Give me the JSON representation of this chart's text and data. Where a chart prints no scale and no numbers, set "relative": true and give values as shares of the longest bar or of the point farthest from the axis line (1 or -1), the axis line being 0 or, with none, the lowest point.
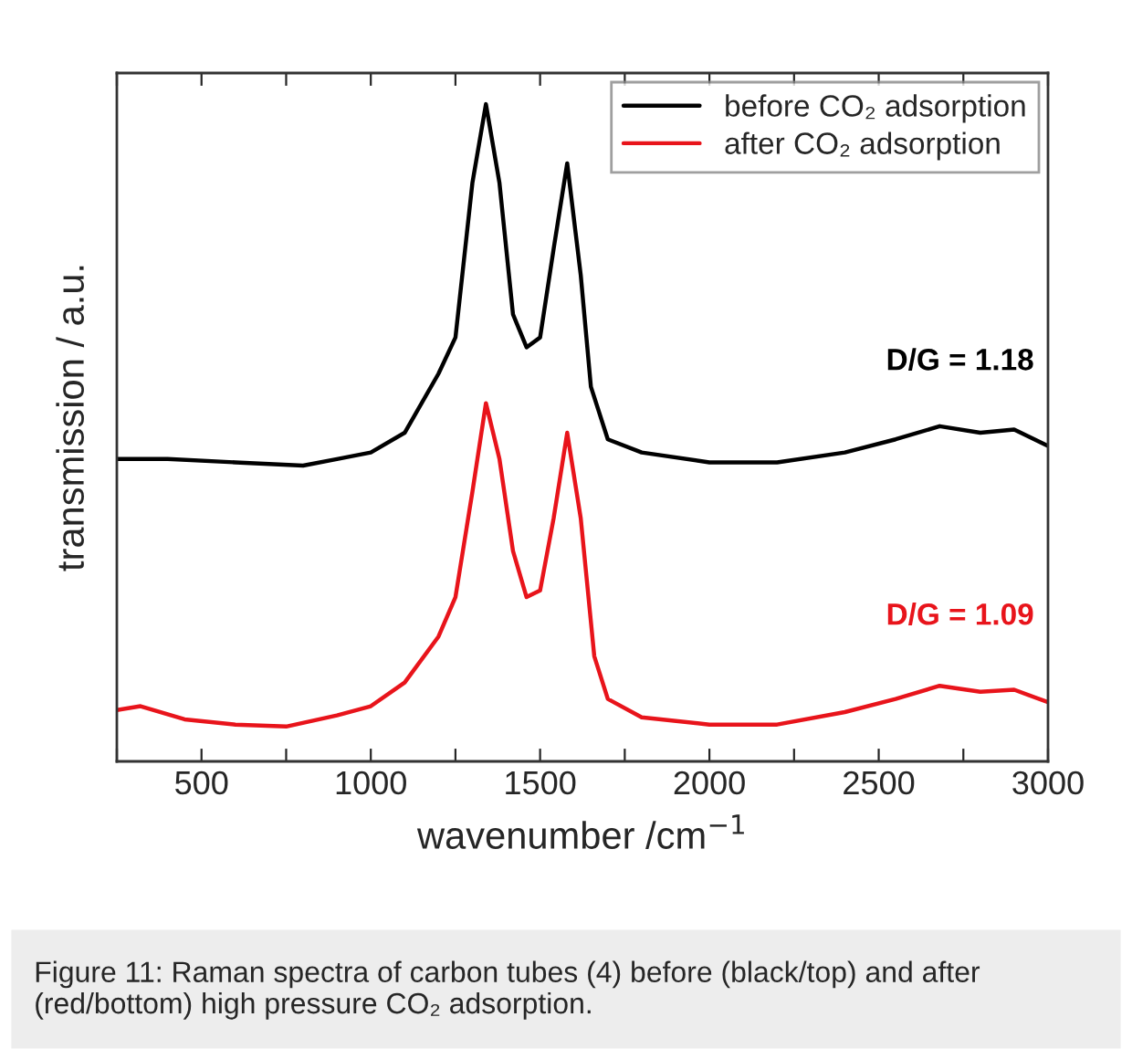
{
  "chart_data": {
    "type": "line",
    "relative": true,
    "xlabel": "wavenumber /cm$^{−1}$",
    "ylabel": "transmission / a.u.",
    "xlim": [
      250,
      3000
    ],
    "xticks": [
      {
        "value": 250,
        "label": null
      },
      500,
      {
        "value": 750,
        "label": null
      },
      1000,
      {
        "value": 1250,
        "label": null
      },
      1500,
      {
        "value": 1750,
        "label": null
      },
      2000,
      {
        "value": 2250,
        "label": null
      },
      2500,
      {
        "value": 2750,
        "label": null
      },
      3000
    ],
    "x": [
      250,
      400,
      600,
      800,
      900,
      1000,
      1100,
      1200,
      1250,
      1300,
      1340,
      1380,
      1420,
      1460,
      1500,
      1540,
      1580,
      1620,
      1650,
      1700,
      1800,
      2000,
      2200,
      2400,
      2550,
      2680,
      2800,
      2900,
      3000
    ],
    "series": [
      {
        "name": "before CO₂ adsorption",
        "color": "#000000",
        "values": [
          0.46,
          0.46,
          0.455,
          0.45,
          0.46,
          0.47,
          0.5,
          0.59,
          0.645,
          0.88,
          1.0,
          0.88,
          0.68,
          0.63,
          0.645,
          0.78,
          0.91,
          0.74,
          0.57,
          0.49,
          0.47,
          0.455,
          0.455,
          0.47,
          0.49,
          0.51,
          0.5,
          0.505,
          0.48
        ]
      },
      {
        "name": "after CO₂ adsorption",
        "color": "#e8141b",
        "x": [
          250,
          320,
          450,
          600,
          750,
          900,
          1000,
          1100,
          1200,
          1250,
          1300,
          1340,
          1380,
          1420,
          1460,
          1500,
          1540,
          1580,
          1620,
          1660,
          1700,
          1800,
          2000,
          2200,
          2400,
          2550,
          2680,
          2800,
          2900,
          3000
        ],
        "values": [
          0.078,
          0.084,
          0.064,
          0.056,
          0.053,
          0.07,
          0.084,
          0.12,
          0.19,
          0.25,
          0.41,
          0.545,
          0.46,
          0.32,
          0.25,
          0.26,
          0.37,
          0.5,
          0.37,
          0.16,
          0.095,
          0.067,
          0.056,
          0.056,
          0.075,
          0.095,
          0.115,
          0.106,
          0.109,
          0.09
        ]
      }
    ],
    "annotations": [
      "D/G = 1.18",
      "D/G = 1.09",
      "Figure 11: Raman spectra of carbon tubes (4) before (black/top) and after (red/bottom) high pressure CO₂ adsorption."
    ],
    "legend": "top right",
    "grid": false
  }
}
